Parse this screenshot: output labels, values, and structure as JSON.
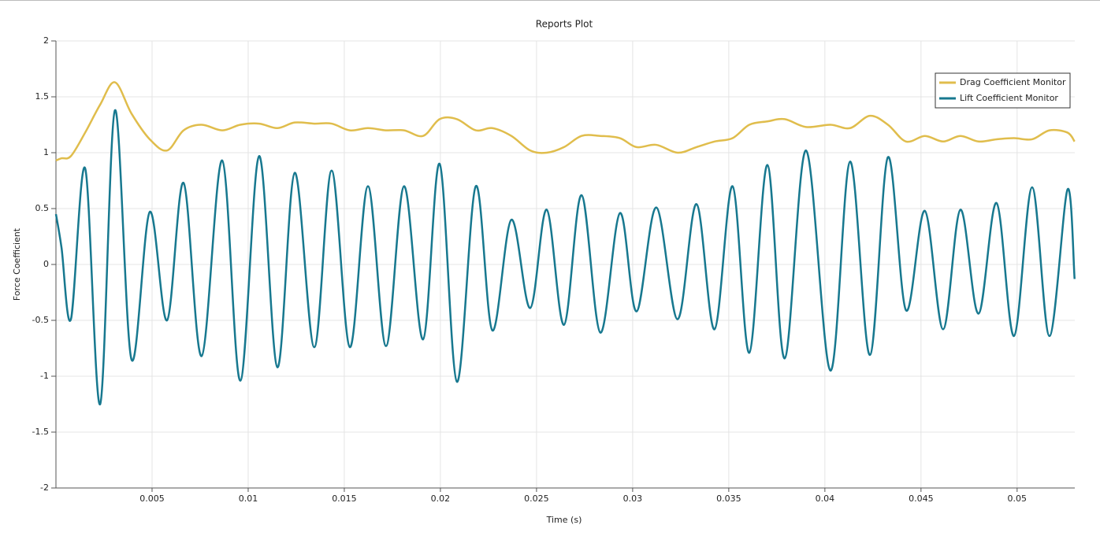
{
  "chart_data": {
    "type": "line",
    "title": "Reports Plot",
    "x_label": "Time (s)",
    "y_label": "Force Coefficient",
    "x": [
      0,
      0.00029,
      0.00078,
      0.00152,
      0.0023,
      0.00307,
      0.00393,
      0.00488,
      0.00578,
      0.00664,
      0.00758,
      0.00865,
      0.00959,
      0.01057,
      0.01152,
      0.01242,
      0.01344,
      0.01434,
      0.01529,
      0.01623,
      0.01717,
      0.01811,
      0.0191,
      0.01996,
      0.02086,
      0.02184,
      0.0227,
      0.02369,
      0.02467,
      0.02553,
      0.02643,
      0.02734,
      0.02832,
      0.02934,
      0.0302,
      0.03123,
      0.03234,
      0.03332,
      0.03426,
      0.0352,
      0.03607,
      0.03701,
      0.03791,
      0.03902,
      0.04029,
      0.04131,
      0.04234,
      0.04328,
      0.04422,
      0.0452,
      0.04615,
      0.04705,
      0.04799,
      0.04893,
      0.04984,
      0.05078,
      0.05168,
      0.05262,
      0.05299
    ],
    "series": [
      {
        "name": "Drag Coefficient Monitor",
        "color": "#e0bd4c",
        "values": [
          0.93,
          0.95,
          0.97,
          1.18,
          1.43,
          1.63,
          1.35,
          1.12,
          1.02,
          1.2,
          1.25,
          1.2,
          1.25,
          1.26,
          1.22,
          1.27,
          1.26,
          1.26,
          1.2,
          1.22,
          1.2,
          1.2,
          1.15,
          1.3,
          1.3,
          1.2,
          1.22,
          1.15,
          1.02,
          1.0,
          1.05,
          1.15,
          1.15,
          1.13,
          1.05,
          1.07,
          1.0,
          1.05,
          1.1,
          1.13,
          1.25,
          1.28,
          1.3,
          1.23,
          1.25,
          1.22,
          1.33,
          1.25,
          1.1,
          1.15,
          1.1,
          1.15,
          1.1,
          1.12,
          1.13,
          1.12,
          1.2,
          1.18,
          1.1
        ]
      },
      {
        "name": "Lift Coefficient Monitor",
        "color": "#17788f",
        "values": [
          0.45,
          0.15,
          -0.49,
          0.86,
          -1.25,
          1.38,
          -0.85,
          0.47,
          -0.5,
          0.73,
          -0.82,
          0.93,
          -1.04,
          0.97,
          -0.92,
          0.82,
          -0.74,
          0.84,
          -0.74,
          0.7,
          -0.73,
          0.7,
          -0.67,
          0.9,
          -1.05,
          0.7,
          -0.59,
          0.4,
          -0.39,
          0.49,
          -0.54,
          0.62,
          -0.61,
          0.46,
          -0.42,
          0.51,
          -0.49,
          0.54,
          -0.58,
          0.7,
          -0.79,
          0.89,
          -0.84,
          1.02,
          -0.95,
          0.92,
          -0.81,
          0.96,
          -0.41,
          0.48,
          -0.58,
          0.49,
          -0.44,
          0.55,
          -0.64,
          0.69,
          -0.64,
          0.67,
          -0.13
        ]
      }
    ],
    "xlim": [
      0,
      0.053
    ],
    "ylim": [
      -2,
      2
    ],
    "xticks": [
      0.005,
      0.01,
      0.015,
      0.02,
      0.025,
      0.03,
      0.035,
      0.04,
      0.045,
      0.05
    ],
    "yticks": [
      -2,
      -1.5,
      -1,
      -0.5,
      0,
      0.5,
      1,
      1.5,
      2
    ],
    "grid": true,
    "legend": "upper right"
  }
}
